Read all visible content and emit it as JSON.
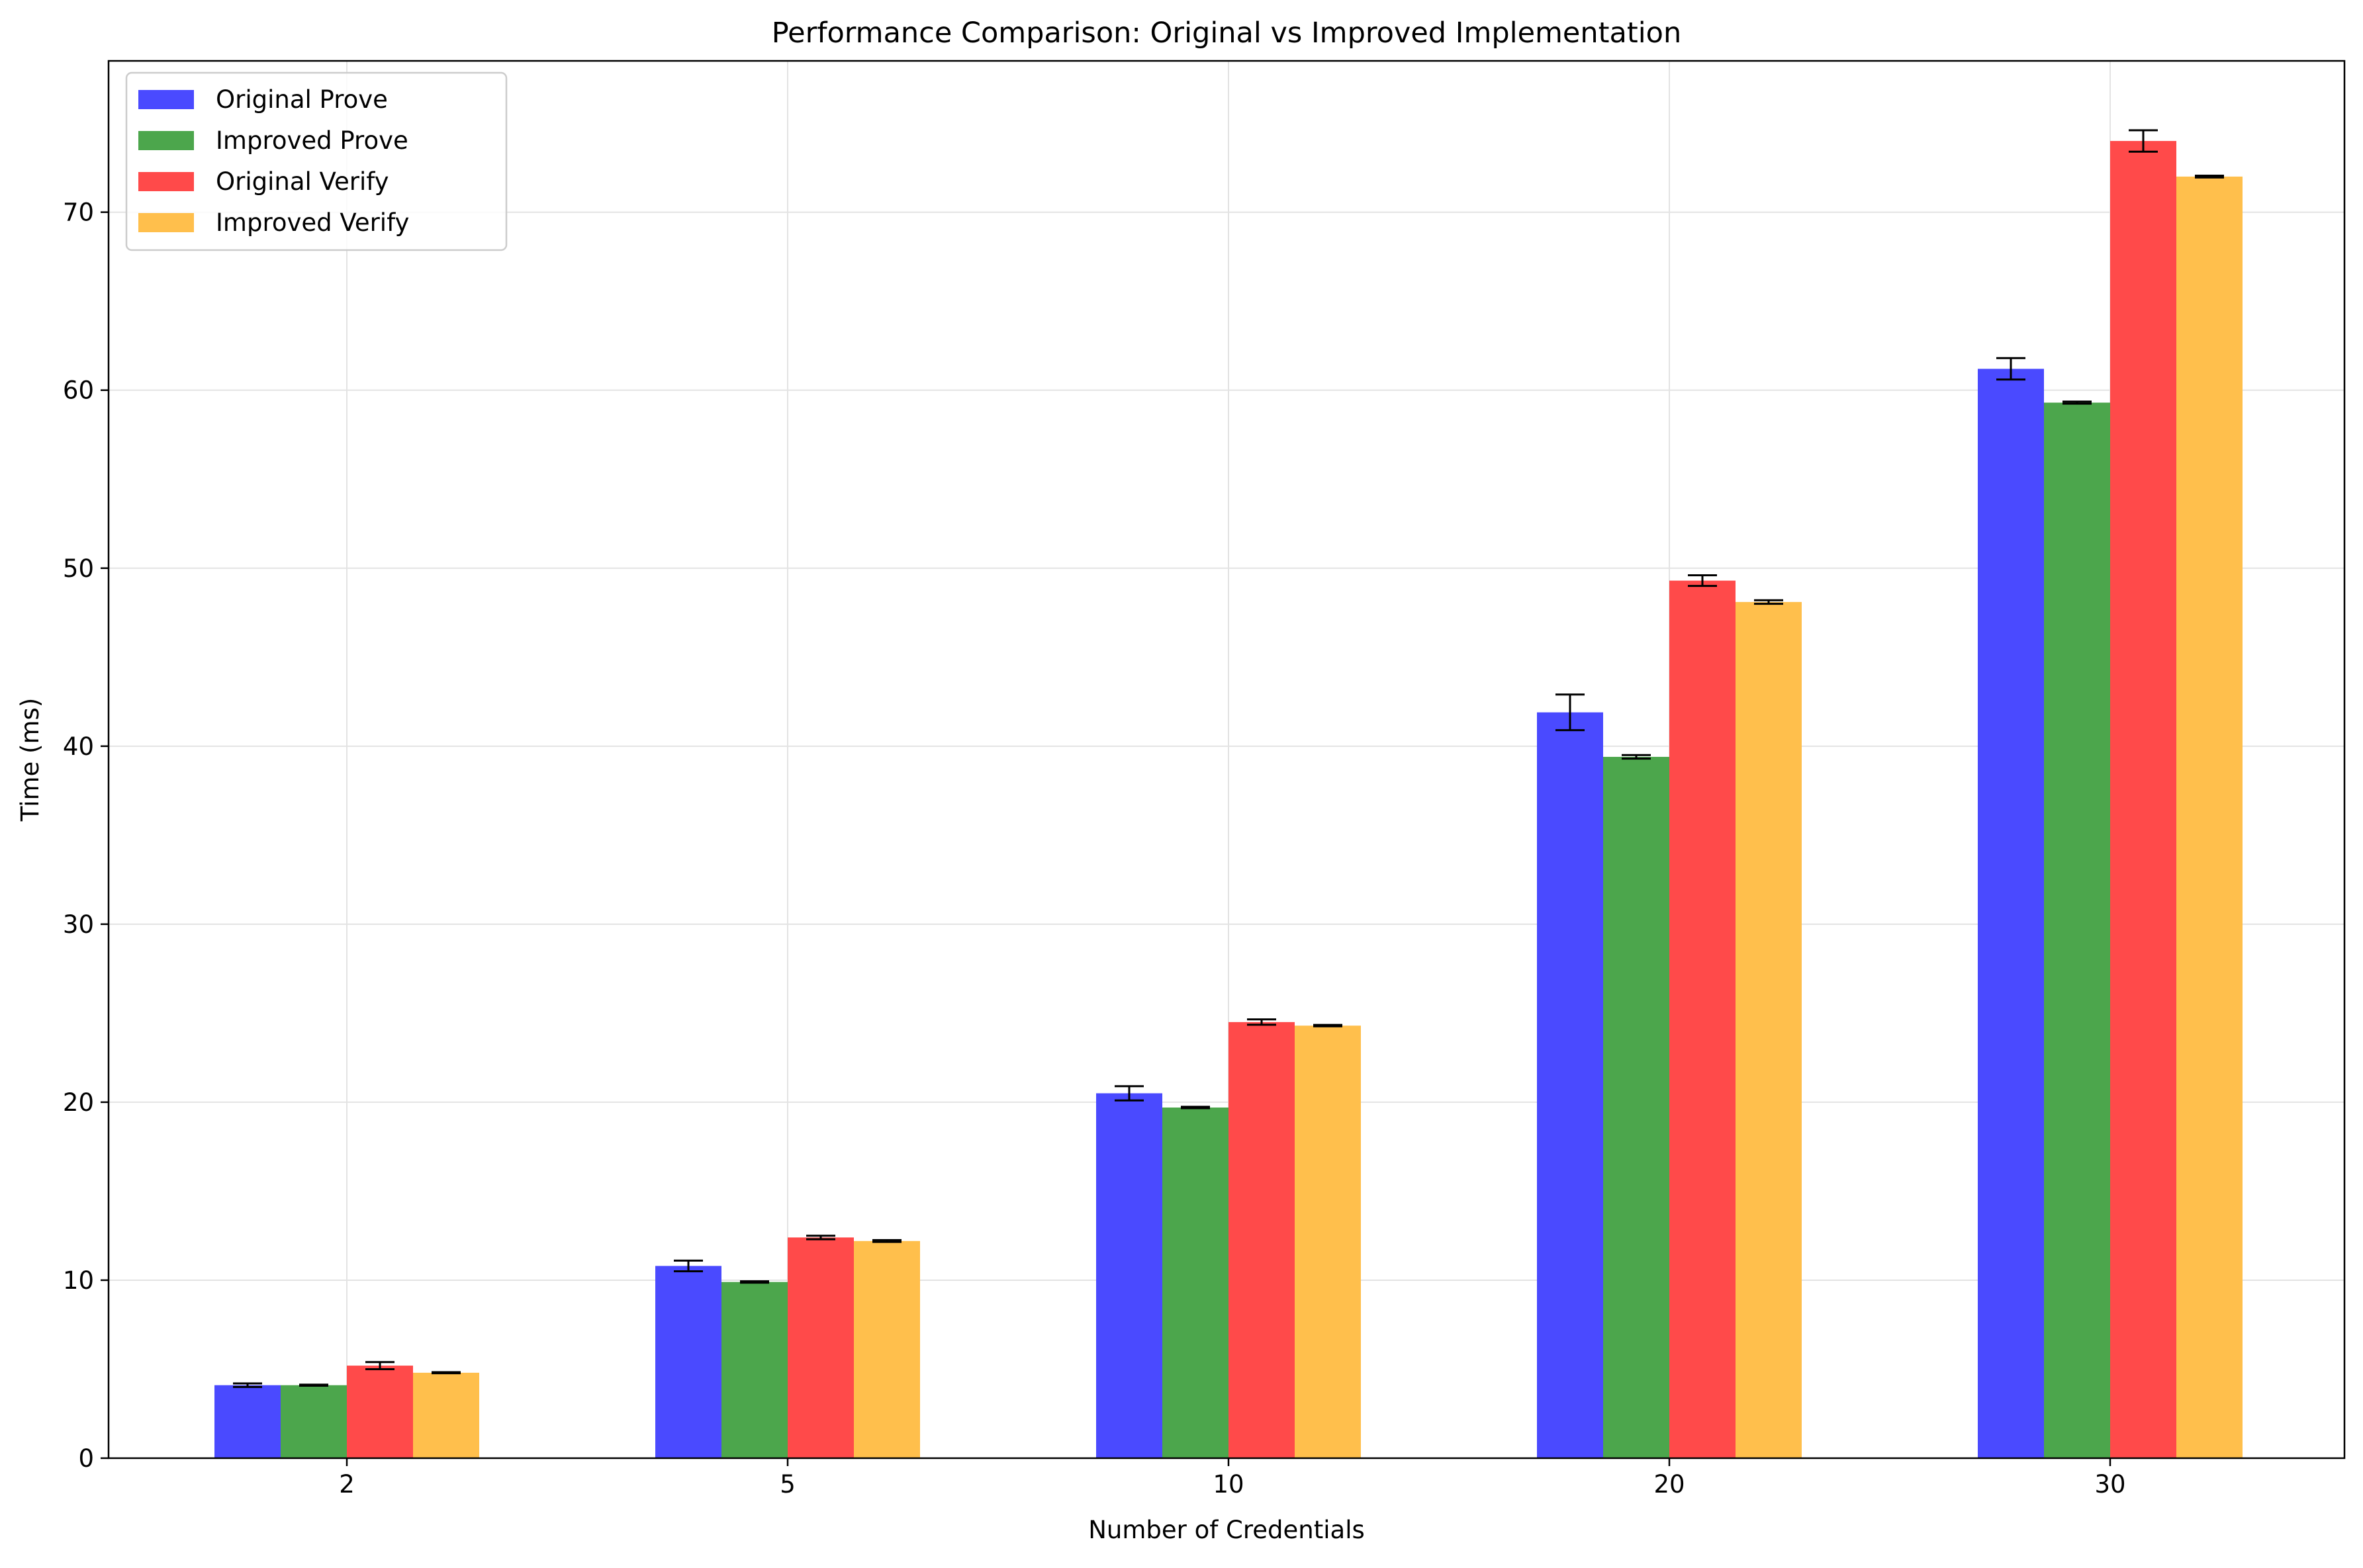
{
  "chart_data": {
    "type": "bar",
    "title": "Performance Comparison: Original vs Improved Implementation",
    "xlabel": "Number of Credentials",
    "ylabel": "Time (ms)",
    "categories": [
      "2",
      "5",
      "10",
      "20",
      "30"
    ],
    "ylim": [
      0,
      78.5
    ],
    "yticks": [
      0,
      10,
      20,
      30,
      40,
      50,
      60,
      70
    ],
    "grid": true,
    "legend_position": "top-left",
    "series": [
      {
        "name": "Original Prove",
        "color": "#4a4aff",
        "values": [
          4.1,
          10.8,
          20.5,
          41.9,
          61.2
        ],
        "errors": [
          0.1,
          0.3,
          0.4,
          1.0,
          0.6
        ]
      },
      {
        "name": "Improved Prove",
        "color": "#4ca64c",
        "values": [
          4.1,
          9.9,
          19.7,
          39.4,
          59.3
        ],
        "errors": [
          0.03,
          0.04,
          0.04,
          0.1,
          0.06
        ]
      },
      {
        "name": "Original Verify",
        "color": "#ff4a4a",
        "values": [
          5.2,
          12.4,
          24.5,
          49.3,
          74.0
        ],
        "errors": [
          0.2,
          0.1,
          0.15,
          0.3,
          0.6
        ]
      },
      {
        "name": "Improved Verify",
        "color": "#ffbf4c",
        "values": [
          4.8,
          12.2,
          24.3,
          48.1,
          72.0
        ],
        "errors": [
          0.03,
          0.05,
          0.04,
          0.1,
          0.05
        ]
      }
    ]
  }
}
